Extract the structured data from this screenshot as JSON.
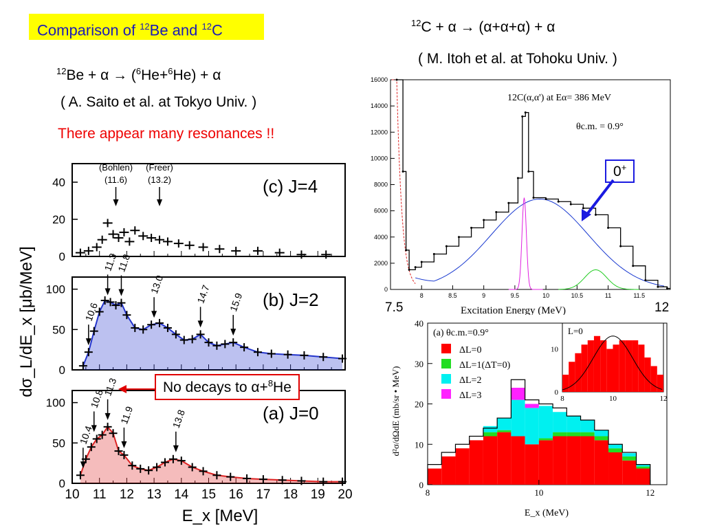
{
  "title": {
    "prefix": "Comparison of ",
    "sup1": "12",
    "mid": "Be and ",
    "sup2": "12",
    "suffix": "C"
  },
  "reaction_be": {
    "sup1": "12",
    "part1": "Be + α → (",
    "sup2": "6",
    "part2": "He+",
    "sup3": "6",
    "part3": "He) + α"
  },
  "credit_be": "( A. Saito et al. at Tokyo Univ. )",
  "remark": "There appear many resonances !!",
  "reaction_c": {
    "sup1": "12",
    "part1": "C + α → (α+α+α) + α"
  },
  "credit_c": "( M. Itoh et al. at Tohoku Univ. )",
  "no_decay": {
    "part1": "No decays to α+",
    "sup": "8",
    "part2": "He"
  },
  "zero_plus": {
    "base": "0",
    "sup": "+"
  },
  "colors": {
    "title_bg": "#ffff00",
    "title_text": "#1a1ab8",
    "remark": "#ee0000",
    "j2_blue": "#2233cc",
    "j0_red": "#dd2222",
    "dl0": "#ff0000",
    "dl1": "#22dd22",
    "dl2": "#00f0f0",
    "dl3": "#ff22ff"
  },
  "chart_data": [
    {
      "type": "scatter",
      "panel": "(c) J=4",
      "xlabel": "E_x [MeV]",
      "ylabel": "dσ_L/dE_x [μb/MeV]",
      "xlim": [
        10,
        20
      ],
      "ylim": [
        0,
        50
      ],
      "yticks": [
        "0",
        "20",
        "40"
      ],
      "annotations": [
        {
          "text": "(Bohlen)",
          "sub": "(11.6)",
          "x": 11.6
        },
        {
          "text": "(Freer)",
          "sub": "(13.2)",
          "x": 13.2
        }
      ],
      "x": [
        10.3,
        10.6,
        10.9,
        11.1,
        11.3,
        11.5,
        11.7,
        11.9,
        12.1,
        12.3,
        12.6,
        12.9,
        13.2,
        13.5,
        13.9,
        14.3,
        14.8,
        15.4,
        16.0,
        16.8,
        17.6,
        18.4,
        19.3
      ],
      "y": [
        2,
        3,
        5,
        9,
        18,
        12,
        10,
        13,
        8,
        14,
        11,
        10,
        9,
        8,
        7,
        6,
        5,
        4,
        3,
        3,
        2,
        1,
        1
      ]
    },
    {
      "type": "line",
      "panel": "(b) J=2",
      "xlim": [
        10,
        20
      ],
      "ylim": [
        0,
        115
      ],
      "yticks": [
        "0",
        "50",
        "100"
      ],
      "peak_labels": [
        "10.6",
        "11.3",
        "11.8",
        "13.0",
        "14.7",
        "15.9"
      ],
      "x": [
        10.4,
        10.6,
        10.8,
        11.0,
        11.2,
        11.4,
        11.6,
        11.8,
        12.0,
        12.3,
        12.6,
        12.9,
        13.2,
        13.5,
        13.8,
        14.1,
        14.4,
        14.7,
        15.0,
        15.3,
        15.6,
        15.9,
        16.3,
        16.8,
        17.3,
        17.9,
        18.5,
        19.2,
        19.9
      ],
      "y": [
        5,
        22,
        48,
        72,
        86,
        84,
        80,
        83,
        68,
        52,
        50,
        56,
        58,
        52,
        44,
        37,
        38,
        44,
        34,
        30,
        32,
        34,
        28,
        22,
        20,
        19,
        18,
        16,
        14
      ]
    },
    {
      "type": "line",
      "panel": "(a) J=0",
      "xlim": [
        10,
        20
      ],
      "ylim": [
        0,
        115
      ],
      "yticks": [
        "0",
        "50",
        "100"
      ],
      "peak_labels": [
        "10.4",
        "10.8",
        "11.3",
        "11.9",
        "13.8"
      ],
      "x": [
        10.3,
        10.5,
        10.7,
        10.9,
        11.1,
        11.3,
        11.5,
        11.7,
        11.9,
        12.2,
        12.5,
        12.8,
        13.1,
        13.4,
        13.7,
        14.0,
        14.4,
        14.8,
        15.3,
        15.8,
        16.4,
        17.0,
        17.7,
        18.4,
        19.2,
        19.9
      ],
      "y": [
        10,
        30,
        45,
        55,
        60,
        70,
        62,
        40,
        35,
        22,
        18,
        16,
        20,
        26,
        30,
        28,
        20,
        15,
        10,
        8,
        6,
        5,
        4,
        3,
        2,
        2
      ]
    },
    {
      "type": "line",
      "title": "12C(α,α') at Eα= 386 MeV",
      "subtitle": "θc.m. = 0.9°",
      "xlabel": "Excitation Energy (MeV)",
      "xlim": [
        7.5,
        12
      ],
      "ylim": [
        0,
        16000
      ],
      "xticks": [
        "8",
        "8.5",
        "9",
        "9.5",
        "10",
        "10.5",
        "11",
        "11.5"
      ],
      "yticks": [
        "0",
        "2000",
        "4000",
        "6000",
        "8000",
        "10000",
        "12000",
        "14000",
        "16000"
      ],
      "edge_labels": [
        "7.5",
        "12"
      ],
      "x": [
        7.6,
        7.7,
        7.75,
        7.8,
        7.9,
        8.0,
        8.2,
        8.4,
        8.6,
        8.8,
        9.0,
        9.2,
        9.4,
        9.55,
        9.62,
        9.67,
        9.72,
        9.8,
        10.0,
        10.2,
        10.4,
        10.6,
        10.8,
        11.0,
        11.2,
        11.4,
        11.6,
        11.8,
        11.95
      ],
      "y": [
        16000,
        9000,
        3000,
        1500,
        1700,
        2100,
        2700,
        3300,
        4000,
        4700,
        5300,
        5900,
        6600,
        8500,
        13200,
        13500,
        9000,
        7000,
        6900,
        6700,
        6500,
        6200,
        5700,
        4700,
        3300,
        1800,
        700,
        200,
        80
      ]
    },
    {
      "type": "bar",
      "title": "(a) θc.m.=0.9°",
      "xlabel": "E_x (MeV)",
      "ylabel": "d²σ/dΩdE (mb/sr • MeV)",
      "xlim": [
        8,
        12.3
      ],
      "ylim": [
        0,
        40
      ],
      "xticks": [
        "8",
        "10",
        "12"
      ],
      "yticks": [
        "0",
        "10",
        "20",
        "30",
        "40"
      ],
      "legend": [
        "ΔL=0",
        "ΔL=1(ΔT=0)",
        "ΔL=2",
        "ΔL=3"
      ],
      "bin_left": [
        8.0,
        8.25,
        8.5,
        8.75,
        9.0,
        9.25,
        9.5,
        9.75,
        10.0,
        10.25,
        10.5,
        10.75,
        11.0,
        11.25,
        11.5,
        11.75
      ],
      "series": [
        {
          "name": "ΔL=0",
          "values": [
            4,
            7,
            9,
            11,
            12,
            13,
            12,
            10,
            11,
            12,
            12,
            12,
            11,
            8,
            6,
            4
          ]
        },
        {
          "name": "ΔL=1(ΔT=0)",
          "values": [
            0,
            0,
            0,
            0,
            1,
            0.5,
            0,
            0,
            0.5,
            1,
            1,
            1,
            1,
            1,
            1,
            0.5
          ]
        },
        {
          "name": "ΔL=2",
          "values": [
            0,
            0,
            0,
            0,
            1.5,
            3,
            9,
            9,
            8,
            5,
            4,
            3,
            1.5,
            1,
            0.8,
            0.5
          ]
        },
        {
          "name": "ΔL=3",
          "values": [
            0,
            0,
            0,
            0,
            0,
            0,
            3,
            1,
            0,
            0,
            0,
            0,
            0,
            0,
            0,
            0
          ]
        }
      ],
      "total": [
        5,
        8,
        10,
        12,
        14,
        16.5,
        26,
        21,
        20,
        19,
        17,
        16,
        13.5,
        10,
        8,
        5
      ]
    },
    {
      "type": "bar",
      "title": "L=0",
      "xlim": [
        8,
        12
      ],
      "ylim": [
        0,
        16
      ],
      "xticks": [
        "8",
        "10",
        "12"
      ],
      "yticks": [
        "0",
        "10"
      ],
      "bin_left": [
        8.0,
        8.25,
        8.5,
        8.75,
        9.0,
        9.25,
        9.5,
        9.75,
        10.0,
        10.25,
        10.5,
        10.75,
        11.0,
        11.25,
        11.5,
        11.75
      ],
      "values": [
        4,
        7,
        9,
        11,
        12,
        13,
        12,
        10,
        11,
        12,
        12,
        12,
        11,
        8,
        6,
        4
      ]
    }
  ]
}
